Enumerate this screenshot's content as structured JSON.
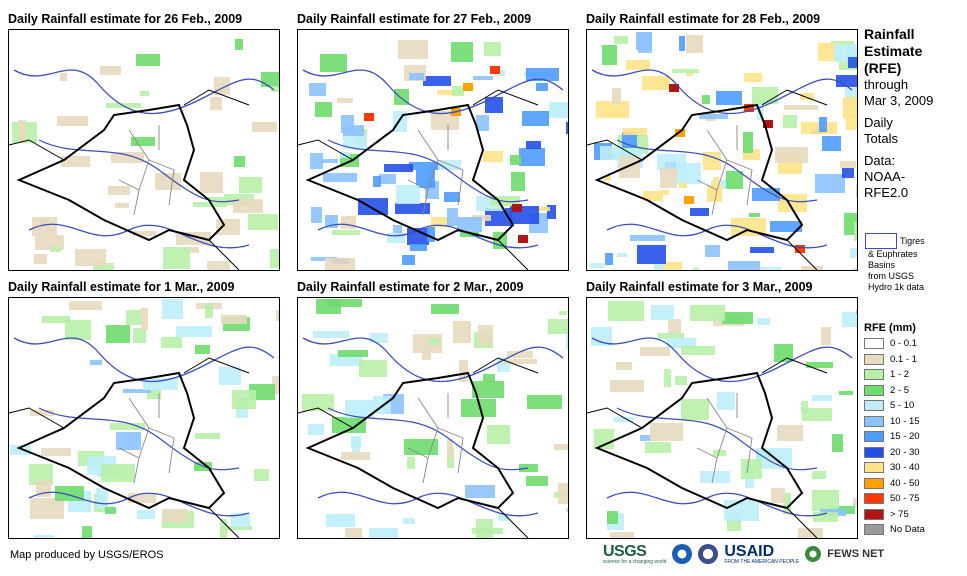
{
  "panels": [
    {
      "title": "Daily Rainfall estimate for 26 Feb., 2009",
      "wet_index": 1
    },
    {
      "title": "Daily Rainfall estimate for 27 Feb., 2009",
      "wet_index": 4
    },
    {
      "title": "Daily Rainfall estimate for 28 Feb., 2009",
      "wet_index": 5
    },
    {
      "title": "Daily Rainfall estimate for 1 Mar., 2009",
      "wet_index": 2
    },
    {
      "title": "Daily Rainfall estimate for 2 Mar., 2009",
      "wet_index": 2
    },
    {
      "title": "Daily Rainfall estimate for 3 Mar., 2009",
      "wet_index": 2
    }
  ],
  "sidebar": {
    "title_line1": "Rainfall",
    "title_line2": "Estimate",
    "title_line3": "(RFE)",
    "through": "through",
    "date": "Mar 3, 2009",
    "daily1": "Daily",
    "daily2": "Totals",
    "data1": "Data:",
    "data2": "NOAA-",
    "data3": "RFE2.0"
  },
  "basins": {
    "label1": "Tigres",
    "label2": "& Euphrates",
    "label3": "Basins",
    "label4": "from USGS",
    "label5": "Hydro 1k data",
    "color": "#3b4fb8"
  },
  "legend": {
    "title": "RFE (mm)",
    "items": [
      {
        "label": "0 - 0.1",
        "color": "#ffffff"
      },
      {
        "label": "0.1 - 1",
        "color": "#e8d9bf"
      },
      {
        "label": "1 - 2",
        "color": "#b8f0a8"
      },
      {
        "label": "2 - 5",
        "color": "#6edc6e"
      },
      {
        "label": "5 - 10",
        "color": "#bdeefa"
      },
      {
        "label": "10 - 15",
        "color": "#8cc2ff"
      },
      {
        "label": "15 - 20",
        "color": "#4f9bff"
      },
      {
        "label": "20 - 30",
        "color": "#2350e8"
      },
      {
        "label": "30 - 40",
        "color": "#ffe38a"
      },
      {
        "label": "40 - 50",
        "color": "#ffa200"
      },
      {
        "label": "50 - 75",
        "color": "#ff3a00"
      },
      {
        "label": "> 75",
        "color": "#b01414"
      },
      {
        "label": "No Data",
        "color": "#9a9a9a"
      }
    ]
  },
  "footer": "Map produced by USGS/EROS",
  "logos": {
    "usgs": "USGS",
    "usgs_sub": "science for a changing world",
    "usaid": "USAID",
    "usaid_sub": "FROM THE AMERICAN PEOPLE",
    "fews": "FEWS NET"
  }
}
